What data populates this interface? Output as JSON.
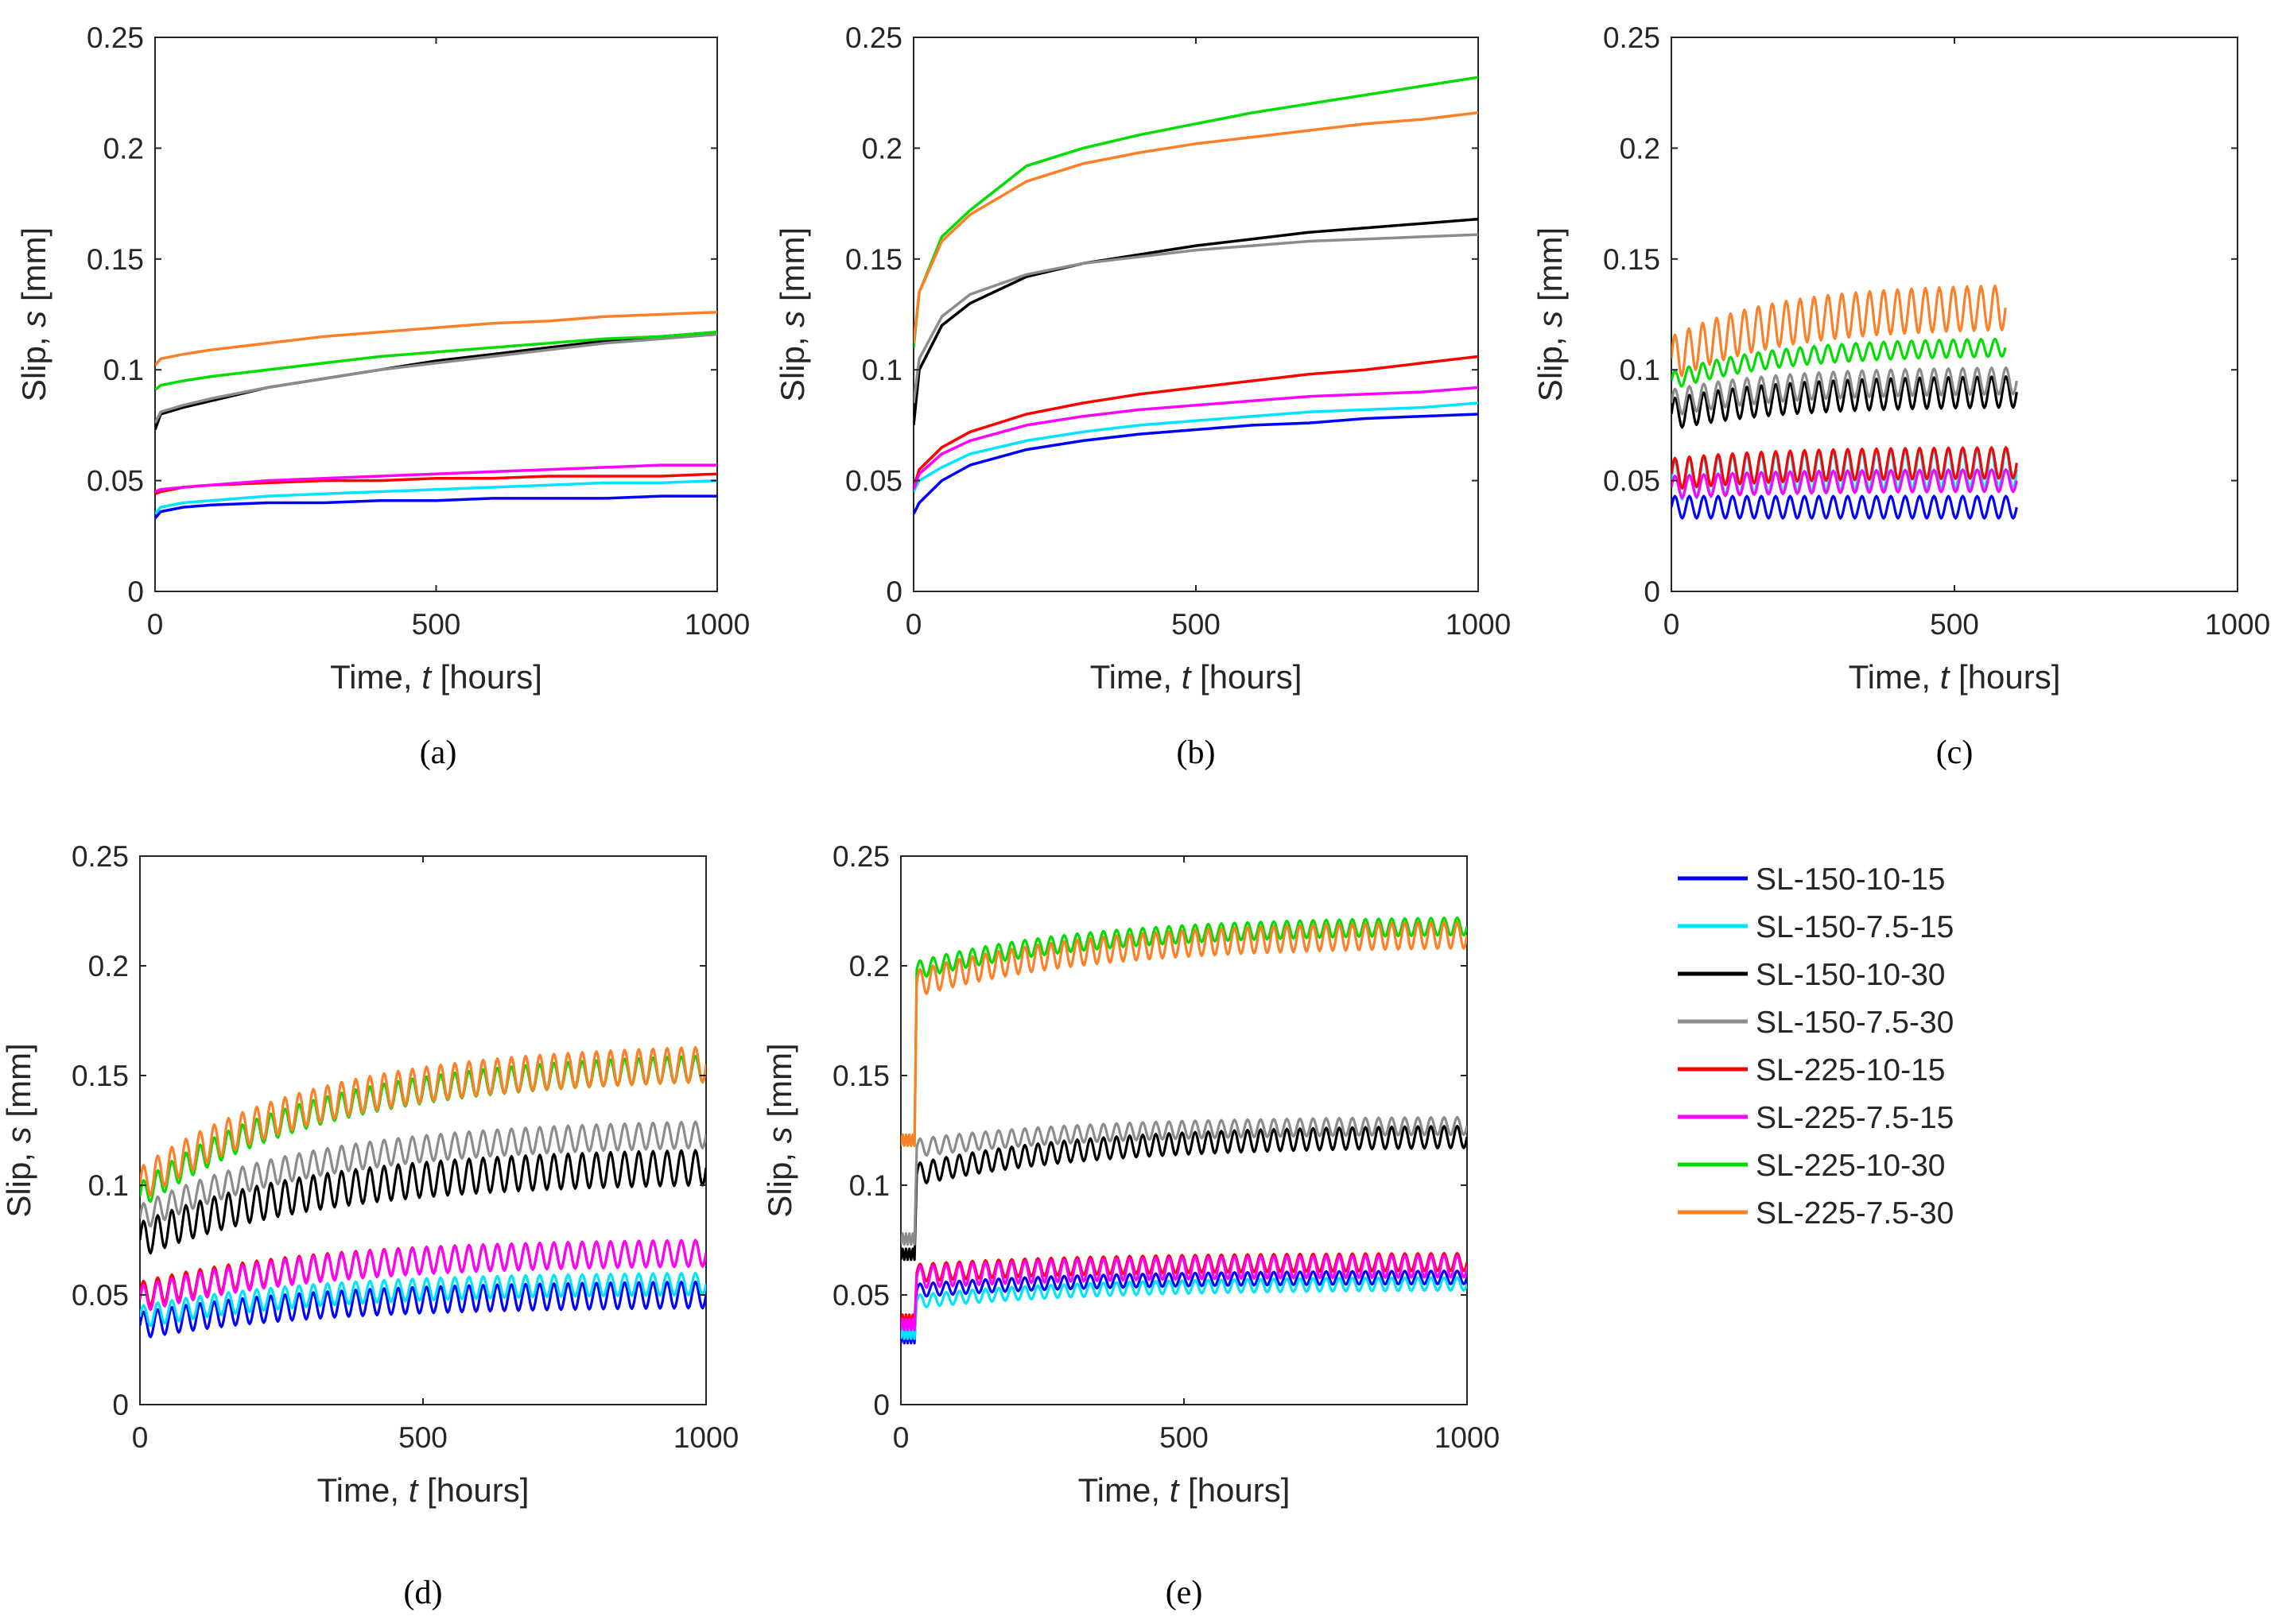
{
  "chart_data": [
    {
      "type": "line",
      "panel": "(a)",
      "caption": "(a)",
      "xlabel_prefix": "Time, ",
      "xlabel_var": "t",
      "xlabel_suffix": " [hours]",
      "ylabel_prefix": "Slip, ",
      "ylabel_var": "s",
      "ylabel_suffix": " [mm]",
      "xlim": [
        0,
        1000
      ],
      "ylim": [
        0,
        0.25
      ],
      "xticks": [
        "0",
        "500",
        "1000"
      ],
      "yticks": [
        "0",
        "0.05",
        "0.1",
        "0.15",
        "0.2",
        "0.25"
      ],
      "series": [
        {
          "name": "SL-150-10-15",
          "x": [
            0,
            10,
            50,
            100,
            200,
            300,
            400,
            500,
            600,
            700,
            800,
            900,
            1000
          ],
          "y": [
            0.033,
            0.036,
            0.038,
            0.039,
            0.04,
            0.04,
            0.041,
            0.041,
            0.042,
            0.042,
            0.042,
            0.043,
            0.043
          ]
        },
        {
          "name": "SL-150-7.5-15",
          "x": [
            0,
            10,
            50,
            100,
            200,
            300,
            400,
            500,
            600,
            700,
            800,
            900,
            1000
          ],
          "y": [
            0.035,
            0.038,
            0.04,
            0.041,
            0.043,
            0.044,
            0.045,
            0.046,
            0.047,
            0.048,
            0.049,
            0.049,
            0.05
          ]
        },
        {
          "name": "SL-150-10-30",
          "x": [
            0,
            10,
            50,
            100,
            200,
            300,
            400,
            500,
            600,
            700,
            800,
            900,
            1000
          ],
          "y": [
            0.073,
            0.08,
            0.083,
            0.086,
            0.092,
            0.096,
            0.1,
            0.104,
            0.107,
            0.11,
            0.113,
            0.115,
            0.117
          ]
        },
        {
          "name": "SL-150-7.5-30",
          "x": [
            0,
            10,
            50,
            100,
            200,
            300,
            400,
            500,
            600,
            700,
            800,
            900,
            1000
          ],
          "y": [
            0.076,
            0.081,
            0.084,
            0.087,
            0.092,
            0.096,
            0.1,
            0.103,
            0.106,
            0.109,
            0.112,
            0.114,
            0.116
          ]
        },
        {
          "name": "SL-225-10-15",
          "x": [
            0,
            10,
            50,
            100,
            200,
            300,
            400,
            500,
            600,
            700,
            800,
            900,
            1000
          ],
          "y": [
            0.044,
            0.045,
            0.047,
            0.048,
            0.049,
            0.05,
            0.05,
            0.051,
            0.051,
            0.052,
            0.052,
            0.052,
            0.053
          ]
        },
        {
          "name": "SL-225-7.5-15",
          "x": [
            0,
            10,
            50,
            100,
            200,
            300,
            400,
            500,
            600,
            700,
            800,
            900,
            1000
          ],
          "y": [
            0.045,
            0.046,
            0.047,
            0.048,
            0.05,
            0.051,
            0.052,
            0.053,
            0.054,
            0.055,
            0.056,
            0.057,
            0.057
          ]
        },
        {
          "name": "SL-225-10-30",
          "x": [
            0,
            10,
            50,
            100,
            200,
            300,
            400,
            500,
            600,
            700,
            800,
            900,
            1000
          ],
          "y": [
            0.091,
            0.093,
            0.095,
            0.097,
            0.1,
            0.103,
            0.106,
            0.108,
            0.11,
            0.112,
            0.114,
            0.115,
            0.117
          ]
        },
        {
          "name": "SL-225-7.5-30",
          "x": [
            0,
            10,
            50,
            100,
            200,
            300,
            400,
            500,
            600,
            700,
            800,
            900,
            1000
          ],
          "y": [
            0.102,
            0.105,
            0.107,
            0.109,
            0.112,
            0.115,
            0.117,
            0.119,
            0.121,
            0.122,
            0.124,
            0.125,
            0.126
          ]
        }
      ]
    },
    {
      "type": "line",
      "panel": "(b)",
      "caption": "(b)",
      "xlabel_prefix": "Time, ",
      "xlabel_var": "t",
      "xlabel_suffix": " [hours]",
      "ylabel_prefix": "Slip, ",
      "ylabel_var": "s",
      "ylabel_suffix": " [mm]",
      "xlim": [
        0,
        1000
      ],
      "ylim": [
        0,
        0.25
      ],
      "xticks": [
        "0",
        "500",
        "1000"
      ],
      "yticks": [
        "0",
        "0.05",
        "0.1",
        "0.15",
        "0.2",
        "0.25"
      ],
      "series": [
        {
          "name": "SL-150-10-15",
          "x": [
            0,
            10,
            50,
            100,
            200,
            300,
            400,
            500,
            600,
            700,
            800,
            900,
            1000
          ],
          "y": [
            0.035,
            0.04,
            0.05,
            0.057,
            0.064,
            0.068,
            0.071,
            0.073,
            0.075,
            0.076,
            0.078,
            0.079,
            0.08
          ]
        },
        {
          "name": "SL-150-7.5-15",
          "x": [
            0,
            10,
            50,
            100,
            200,
            300,
            400,
            500,
            600,
            700,
            800,
            900,
            1000
          ],
          "y": [
            0.045,
            0.05,
            0.056,
            0.062,
            0.068,
            0.072,
            0.075,
            0.077,
            0.079,
            0.081,
            0.082,
            0.083,
            0.085
          ]
        },
        {
          "name": "SL-150-10-30",
          "x": [
            0,
            10,
            50,
            100,
            200,
            300,
            400,
            500,
            600,
            700,
            800,
            900,
            1000
          ],
          "y": [
            0.075,
            0.1,
            0.12,
            0.13,
            0.142,
            0.148,
            0.152,
            0.156,
            0.159,
            0.162,
            0.164,
            0.166,
            0.168
          ]
        },
        {
          "name": "SL-150-7.5-30",
          "x": [
            0,
            10,
            50,
            100,
            200,
            300,
            400,
            500,
            600,
            700,
            800,
            900,
            1000
          ],
          "y": [
            0.085,
            0.105,
            0.124,
            0.134,
            0.143,
            0.148,
            0.151,
            0.154,
            0.156,
            0.158,
            0.159,
            0.16,
            0.161
          ]
        },
        {
          "name": "SL-225-10-15",
          "x": [
            0,
            10,
            50,
            100,
            200,
            300,
            400,
            500,
            600,
            700,
            800,
            900,
            1000
          ],
          "y": [
            0.047,
            0.055,
            0.065,
            0.072,
            0.08,
            0.085,
            0.089,
            0.092,
            0.095,
            0.098,
            0.1,
            0.103,
            0.106
          ]
        },
        {
          "name": "SL-225-7.5-15",
          "x": [
            0,
            10,
            50,
            100,
            200,
            300,
            400,
            500,
            600,
            700,
            800,
            900,
            1000
          ],
          "y": [
            0.046,
            0.053,
            0.062,
            0.068,
            0.075,
            0.079,
            0.082,
            0.084,
            0.086,
            0.088,
            0.089,
            0.09,
            0.092
          ]
        },
        {
          "name": "SL-225-10-30",
          "x": [
            0,
            10,
            50,
            100,
            200,
            300,
            400,
            500,
            600,
            700,
            800,
            900,
            1000
          ],
          "y": [
            0.11,
            0.135,
            0.16,
            0.172,
            0.192,
            0.2,
            0.206,
            0.211,
            0.216,
            0.22,
            0.224,
            0.228,
            0.232
          ]
        },
        {
          "name": "SL-225-7.5-30",
          "x": [
            0,
            10,
            50,
            100,
            200,
            300,
            400,
            500,
            600,
            700,
            800,
            900,
            1000
          ],
          "y": [
            0.112,
            0.135,
            0.158,
            0.17,
            0.185,
            0.193,
            0.198,
            0.202,
            0.205,
            0.208,
            0.211,
            0.213,
            0.216
          ]
        }
      ]
    },
    {
      "type": "line",
      "panel": "(c)",
      "caption": "(c)",
      "xlabel_prefix": "Time, ",
      "xlabel_var": "t",
      "xlabel_suffix": " [hours]",
      "ylabel_prefix": "Slip, ",
      "ylabel_var": "s",
      "ylabel_suffix": " [mm]",
      "xlim": [
        0,
        1000
      ],
      "ylim": [
        0,
        0.25
      ],
      "xticks": [
        "0",
        "500",
        "1000"
      ],
      "yticks": [
        "0",
        "0.05",
        "0.1",
        "0.15",
        "0.2",
        "0.25"
      ],
      "cyclic": true,
      "cycles": 24,
      "series": [
        {
          "name": "SL-150-10-15",
          "t_end": 610,
          "base_start": 0.038,
          "base_end": 0.038,
          "amplitude": 0.005
        },
        {
          "name": "SL-150-7.5-15",
          "t_end": 610,
          "base_start": 0.05,
          "base_end": 0.055,
          "amplitude": 0.009
        },
        {
          "name": "SL-150-10-30",
          "t_end": 610,
          "base_start": 0.08,
          "base_end": 0.09,
          "amplitude": 0.007
        },
        {
          "name": "SL-150-7.5-30",
          "t_end": 610,
          "base_start": 0.085,
          "base_end": 0.095,
          "amplitude": 0.006
        },
        {
          "name": "SL-225-10-15",
          "t_end": 610,
          "base_start": 0.053,
          "base_end": 0.058,
          "amplitude": 0.007
        },
        {
          "name": "SL-225-7.5-15",
          "t_end": 610,
          "base_start": 0.047,
          "base_end": 0.05,
          "amplitude": 0.005
        },
        {
          "name": "SL-225-10-30",
          "t_end": 590,
          "base_start": 0.095,
          "base_end": 0.11,
          "amplitude": 0.004
        },
        {
          "name": "SL-225-7.5-30",
          "t_end": 590,
          "base_start": 0.105,
          "base_end": 0.128,
          "amplitude": 0.01
        }
      ]
    },
    {
      "type": "line",
      "panel": "(d)",
      "caption": "(d)",
      "xlabel_prefix": "Time, ",
      "xlabel_var": "t",
      "xlabel_suffix": " [hours]",
      "ylabel_prefix": "Slip, ",
      "ylabel_var": "s",
      "ylabel_suffix": " [mm]",
      "xlim": [
        0,
        1000
      ],
      "ylim": [
        0,
        0.25
      ],
      "xticks": [
        "0",
        "500",
        "1000"
      ],
      "yticks": [
        "0",
        "0.05",
        "0.1",
        "0.15",
        "0.2",
        "0.25"
      ],
      "cyclic": true,
      "cycles": 40,
      "series": [
        {
          "name": "SL-150-10-15",
          "t_end": 1000,
          "base_start": 0.036,
          "base_end": 0.05,
          "amplitude": 0.006
        },
        {
          "name": "SL-150-7.5-15",
          "t_end": 1000,
          "base_start": 0.04,
          "base_end": 0.055,
          "amplitude": 0.005
        },
        {
          "name": "SL-150-10-30",
          "t_end": 1000,
          "base_start": 0.075,
          "base_end": 0.108,
          "amplitude": 0.008
        },
        {
          "name": "SL-150-7.5-30",
          "t_end": 1000,
          "base_start": 0.085,
          "base_end": 0.123,
          "amplitude": 0.006
        },
        {
          "name": "SL-225-10-15",
          "t_end": 1000,
          "base_start": 0.05,
          "base_end": 0.069,
          "amplitude": 0.006
        },
        {
          "name": "SL-225-7.5-15",
          "t_end": 1000,
          "base_start": 0.048,
          "base_end": 0.069,
          "amplitude": 0.006
        },
        {
          "name": "SL-225-10-30",
          "t_end": 1000,
          "base_start": 0.095,
          "base_end": 0.153,
          "amplitude": 0.006
        },
        {
          "name": "SL-225-7.5-30",
          "t_end": 1000,
          "base_start": 0.1,
          "base_end": 0.155,
          "amplitude": 0.008
        }
      ]
    },
    {
      "type": "line",
      "panel": "(e)",
      "caption": "(e)",
      "xlabel_prefix": "Time, ",
      "xlabel_var": "t",
      "xlabel_suffix": " [hours]",
      "ylabel_prefix": "Slip, ",
      "ylabel_var": "s",
      "ylabel_suffix": " [mm]",
      "xlim": [
        0,
        1000
      ],
      "ylim": [
        0,
        0.25
      ],
      "xticks": [
        "0",
        "500",
        "1000"
      ],
      "yticks": [
        "0",
        "0.05",
        "0.1",
        "0.15",
        "0.2",
        "0.25"
      ],
      "cyclic": true,
      "cycles": 42,
      "series": [
        {
          "name": "SL-150-10-15",
          "t_end": 1000,
          "base_start": 0.052,
          "base_end": 0.058,
          "amplitude": 0.003,
          "pre_level": 0.03
        },
        {
          "name": "SL-150-7.5-15",
          "t_end": 1000,
          "base_start": 0.047,
          "base_end": 0.055,
          "amplitude": 0.003,
          "pre_level": 0.032
        },
        {
          "name": "SL-150-10-30",
          "t_end": 1000,
          "base_start": 0.105,
          "base_end": 0.122,
          "amplitude": 0.005,
          "pre_level": 0.068
        },
        {
          "name": "SL-150-7.5-30",
          "t_end": 1000,
          "base_start": 0.117,
          "base_end": 0.127,
          "amplitude": 0.004,
          "pre_level": 0.075
        },
        {
          "name": "SL-225-10-15",
          "t_end": 1000,
          "base_start": 0.06,
          "base_end": 0.065,
          "amplitude": 0.004,
          "pre_level": 0.038
        },
        {
          "name": "SL-225-7.5-15",
          "t_end": 1000,
          "base_start": 0.058,
          "base_end": 0.063,
          "amplitude": 0.005,
          "pre_level": 0.036
        },
        {
          "name": "SL-225-10-30",
          "t_end": 1000,
          "base_start": 0.198,
          "base_end": 0.218,
          "amplitude": 0.004,
          "pre_level": 0.12
        },
        {
          "name": "SL-225-7.5-30",
          "t_end": 1000,
          "base_start": 0.192,
          "base_end": 0.214,
          "amplitude": 0.006,
          "pre_level": 0.12
        }
      ]
    }
  ],
  "legend": {
    "entries": [
      {
        "label": "SL-150-10-15",
        "color": "#0000ff"
      },
      {
        "label": "SL-150-7.5-15",
        "color": "#00e5ff"
      },
      {
        "label": "SL-150-10-30",
        "color": "#000000"
      },
      {
        "label": "SL-150-7.5-30",
        "color": "#8c8c8c"
      },
      {
        "label": "SL-225-10-15",
        "color": "#ff0000"
      },
      {
        "label": "SL-225-7.5-15",
        "color": "#ff00ff"
      },
      {
        "label": "SL-225-10-30",
        "color": "#00dd00"
      },
      {
        "label": "SL-225-7.5-30",
        "color": "#ff7f27"
      }
    ]
  }
}
